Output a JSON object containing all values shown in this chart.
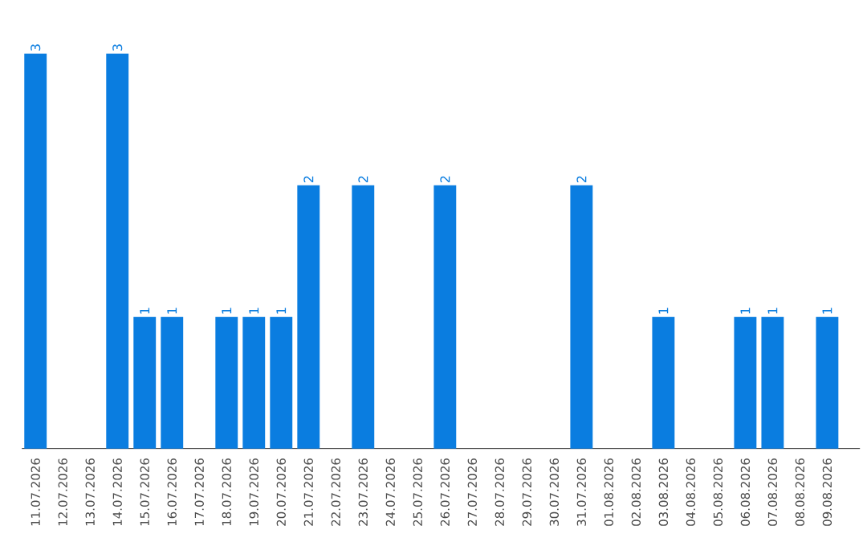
{
  "chart_data": {
    "type": "bar",
    "categories": [
      "11.07.2026",
      "12.07.2026",
      "13.07.2026",
      "14.07.2026",
      "15.07.2026",
      "16.07.2026",
      "17.07.2026",
      "18.07.2026",
      "19.07.2026",
      "20.07.2026",
      "21.07.2026",
      "22.07.2026",
      "23.07.2026",
      "24.07.2026",
      "25.07.2026",
      "26.07.2026",
      "27.07.2026",
      "28.07.2026",
      "29.07.2026",
      "30.07.2026",
      "31.07.2026",
      "01.08.2026",
      "02.08.2026",
      "03.08.2026",
      "04.08.2026",
      "05.08.2026",
      "06.08.2026",
      "07.08.2026",
      "08.08.2026",
      "09.08.2026"
    ],
    "values": [
      3,
      0,
      0,
      3,
      1,
      1,
      0,
      1,
      1,
      1,
      2,
      0,
      2,
      0,
      0,
      2,
      0,
      0,
      0,
      0,
      2,
      0,
      0,
      1,
      0,
      0,
      1,
      1,
      0,
      1
    ],
    "value_labels": [
      "3",
      null,
      null,
      "3",
      "1",
      "1",
      null,
      "1",
      "1",
      "1",
      "2",
      null,
      "2",
      null,
      null,
      "2",
      null,
      null,
      null,
      null,
      "2",
      null,
      null,
      "1",
      null,
      null,
      "1",
      "1",
      null,
      "1"
    ],
    "color": "#0a7de0",
    "ylim": [
      0,
      3
    ],
    "tick_labels": "x"
  }
}
